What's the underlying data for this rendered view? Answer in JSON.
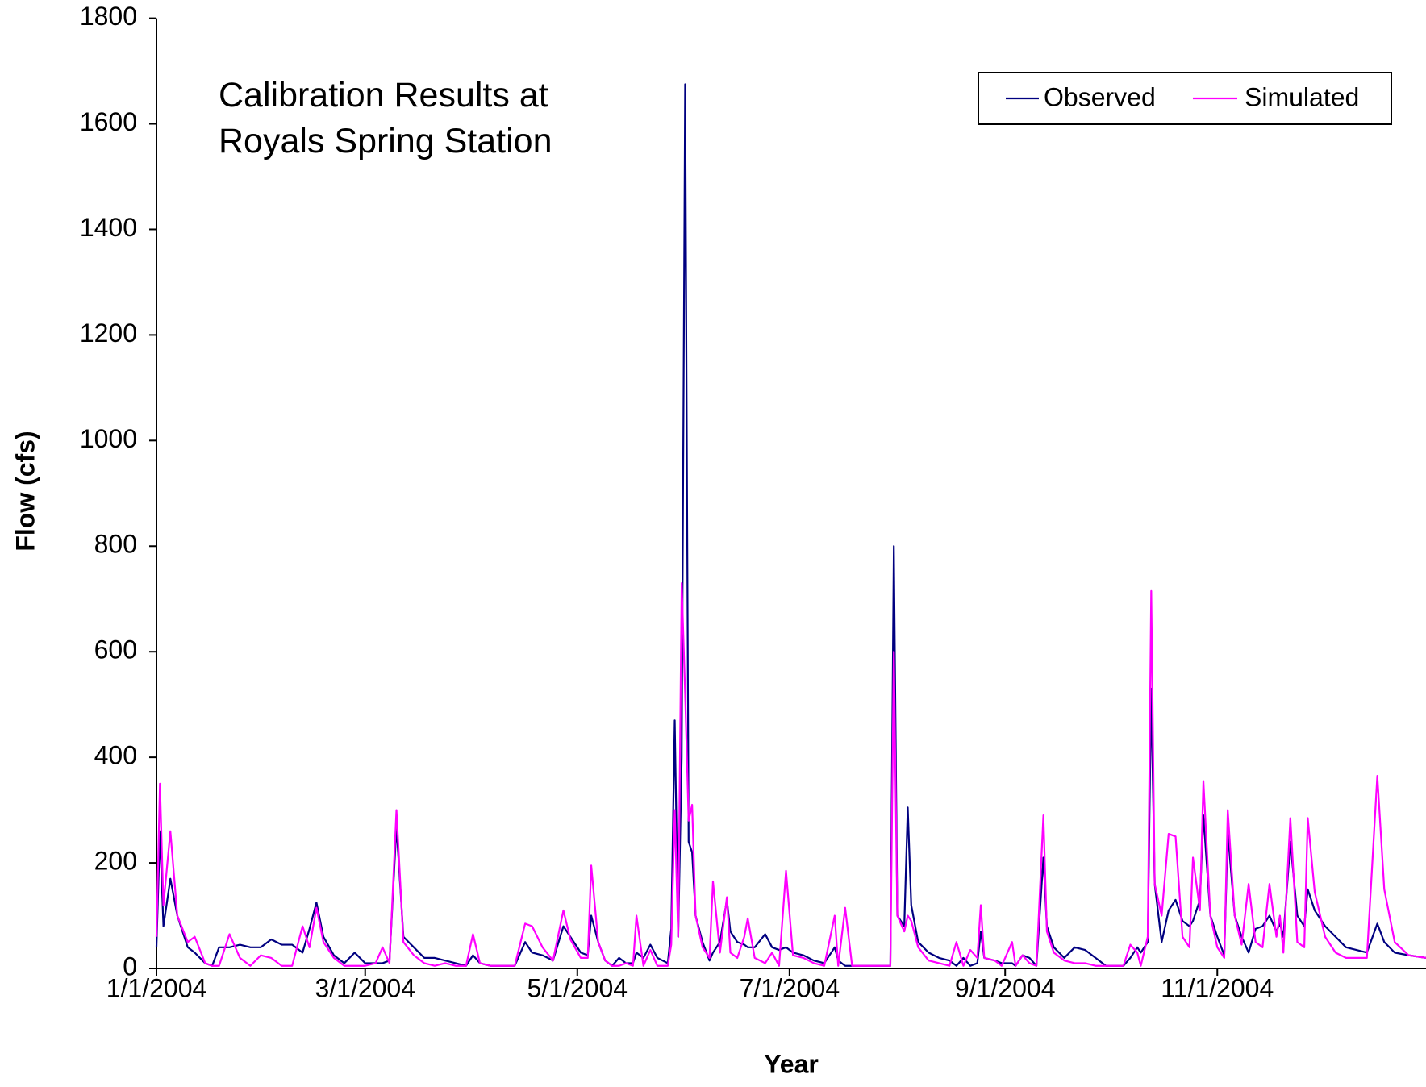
{
  "chart_data": {
    "type": "line",
    "title": "Calibration Results at Royals Spring Station",
    "x_label": "Year",
    "y_label": "Flow (cfs)",
    "xlim": [
      "1/1/2004",
      "12/31/2004"
    ],
    "xticks": [
      "1/1/2004",
      "3/1/2004",
      "5/1/2004",
      "7/1/2004",
      "9/1/2004",
      "11/1/2004"
    ],
    "ylim": [
      0,
      1800
    ],
    "yticks": [
      0,
      200,
      400,
      600,
      800,
      1000,
      1200,
      1400,
      1600,
      1800
    ],
    "grid": false,
    "legend": "top-right",
    "x": [
      "1/1/2004",
      "1/2/2004",
      "1/3/2004",
      "1/5/2004",
      "1/7/2004",
      "1/10/2004",
      "1/12/2004",
      "1/15/2004",
      "1/17/2004",
      "1/19/2004",
      "1/22/2004",
      "1/25/2004",
      "1/28/2004",
      "1/31/2004",
      "2/3/2004",
      "2/6/2004",
      "2/9/2004",
      "2/12/2004",
      "2/14/2004",
      "2/16/2004",
      "2/18/2004",
      "2/21/2004",
      "2/24/2004",
      "2/27/2004",
      "3/1/2004",
      "3/4/2004",
      "3/6/2004",
      "3/8/2004",
      "3/10/2004",
      "3/12/2004",
      "3/15/2004",
      "3/18/2004",
      "3/21/2004",
      "3/24/2004",
      "3/27/2004",
      "3/30/2004",
      "4/1/2004",
      "4/3/2004",
      "4/6/2004",
      "4/10/2004",
      "4/13/2004",
      "4/16/2004",
      "4/18/2004",
      "4/21/2004",
      "4/24/2004",
      "4/27/2004",
      "4/29/2004",
      "5/2/2004",
      "5/4/2004",
      "5/5/2004",
      "5/7/2004",
      "5/9/2004",
      "5/11/2004",
      "5/13/2004",
      "5/15/2004",
      "5/17/2004",
      "5/18/2004",
      "5/20/2004",
      "5/22/2004",
      "5/24/2004",
      "5/27/2004",
      "5/28/2004",
      "5/29/2004",
      "5/30/2004",
      "5/31/2004",
      "6/1/2004",
      "6/2/2004",
      "6/3/2004",
      "6/4/2004",
      "6/6/2004",
      "6/8/2004",
      "6/9/2004",
      "6/11/2004",
      "6/13/2004",
      "6/14/2004",
      "6/16/2004",
      "6/18/2004",
      "6/19/2004",
      "6/21/2004",
      "6/24/2004",
      "6/26/2004",
      "6/28/2004",
      "6/30/2004",
      "7/2/2004",
      "7/5/2004",
      "7/8/2004",
      "7/11/2004",
      "7/14/2004",
      "7/15/2004",
      "7/17/2004",
      "7/19/2004",
      "7/22/2004",
      "7/30/2004",
      "7/31/2004",
      "8/1/2004",
      "8/3/2004",
      "8/4/2004",
      "8/5/2004",
      "8/7/2004",
      "8/10/2004",
      "8/13/2004",
      "8/16/2004",
      "8/18/2004",
      "8/20/2004",
      "8/22/2004",
      "8/24/2004",
      "8/25/2004",
      "8/26/2004",
      "8/29/2004",
      "8/31/2004",
      "9/3/2004",
      "9/4/2004",
      "9/6/2004",
      "9/8/2004",
      "9/10/2004",
      "9/12/2004",
      "9/13/2004",
      "9/15/2004",
      "9/18/2004",
      "9/21/2004",
      "9/24/2004",
      "9/27/2004",
      "9/30/2004",
      "10/5/2004",
      "10/7/2004",
      "10/9/2004",
      "10/10/2004",
      "10/12/2004",
      "10/13/2004",
      "10/14/2004",
      "10/16/2004",
      "10/18/2004",
      "10/20/2004",
      "10/22/2004",
      "10/24/2004",
      "10/25/2004",
      "10/27/2004",
      "10/28/2004",
      "10/30/2004",
      "11/1/2004",
      "11/3/2004",
      "11/4/2004",
      "11/6/2004",
      "11/8/2004",
      "11/10/2004",
      "11/12/2004",
      "11/14/2004",
      "11/16/2004",
      "11/18/2004",
      "11/19/2004",
      "11/20/2004",
      "11/22/2004",
      "11/24/2004",
      "11/26/2004",
      "11/27/2004",
      "11/29/2004",
      "12/2/2004",
      "12/5/2004",
      "12/8/2004",
      "12/11/2004",
      "12/14/2004",
      "12/17/2004",
      "12/19/2004",
      "12/22/2004",
      "12/26/2004",
      "12/31/2004"
    ],
    "series": [
      {
        "name": "Observed",
        "color": "#000080",
        "values": [
          40,
          260,
          80,
          170,
          100,
          40,
          30,
          10,
          5,
          40,
          40,
          45,
          40,
          40,
          55,
          45,
          45,
          30,
          75,
          125,
          60,
          25,
          10,
          30,
          10,
          10,
          10,
          15,
          270,
          60,
          40,
          20,
          20,
          15,
          10,
          5,
          25,
          10,
          5,
          5,
          5,
          50,
          30,
          25,
          15,
          80,
          60,
          30,
          25,
          100,
          50,
          15,
          5,
          20,
          10,
          10,
          30,
          20,
          45,
          20,
          10,
          75,
          470,
          60,
          400,
          1675,
          240,
          220,
          100,
          50,
          15,
          30,
          50,
          130,
          70,
          50,
          45,
          40,
          40,
          65,
          40,
          35,
          40,
          30,
          25,
          15,
          10,
          40,
          15,
          5,
          5,
          5,
          5,
          800,
          100,
          80,
          305,
          120,
          50,
          30,
          20,
          15,
          5,
          20,
          5,
          10,
          70,
          20,
          15,
          10,
          10,
          5,
          25,
          20,
          5,
          210,
          80,
          40,
          20,
          40,
          35,
          20,
          5,
          5,
          20,
          40,
          30,
          50,
          530,
          160,
          50,
          110,
          130,
          90,
          80,
          90,
          130,
          290,
          100,
          60,
          25,
          260,
          100,
          60,
          30,
          75,
          80,
          100,
          70,
          85,
          60,
          240,
          100,
          80,
          150,
          110,
          80,
          60,
          40,
          35,
          30,
          85,
          50,
          30,
          25,
          20
        ]
      },
      {
        "name": "Simulated",
        "color": "#ff00ff",
        "values": [
          60,
          350,
          120,
          260,
          100,
          50,
          60,
          10,
          5,
          5,
          65,
          20,
          5,
          25,
          20,
          5,
          5,
          80,
          40,
          115,
          50,
          20,
          5,
          5,
          5,
          10,
          40,
          10,
          300,
          50,
          25,
          10,
          5,
          10,
          5,
          5,
          65,
          10,
          5,
          5,
          5,
          85,
          80,
          40,
          15,
          110,
          55,
          20,
          20,
          195,
          50,
          15,
          5,
          5,
          10,
          5,
          100,
          5,
          35,
          5,
          5,
          45,
          300,
          60,
          730,
          520,
          280,
          310,
          100,
          40,
          20,
          165,
          30,
          135,
          30,
          20,
          60,
          95,
          20,
          10,
          30,
          5,
          185,
          25,
          20,
          10,
          5,
          100,
          5,
          115,
          5,
          5,
          5,
          600,
          100,
          70,
          100,
          90,
          40,
          15,
          10,
          5,
          50,
          5,
          35,
          20,
          120,
          20,
          15,
          5,
          50,
          5,
          25,
          10,
          5,
          290,
          70,
          30,
          15,
          10,
          10,
          5,
          5,
          5,
          45,
          30,
          5,
          60,
          715,
          160,
          100,
          255,
          250,
          60,
          40,
          210,
          110,
          355,
          100,
          40,
          20,
          300,
          100,
          45,
          160,
          50,
          40,
          160,
          60,
          100,
          30,
          285,
          50,
          40,
          285,
          145,
          60,
          30,
          20,
          20,
          20,
          365,
          150,
          50,
          25,
          20
        ]
      }
    ]
  }
}
